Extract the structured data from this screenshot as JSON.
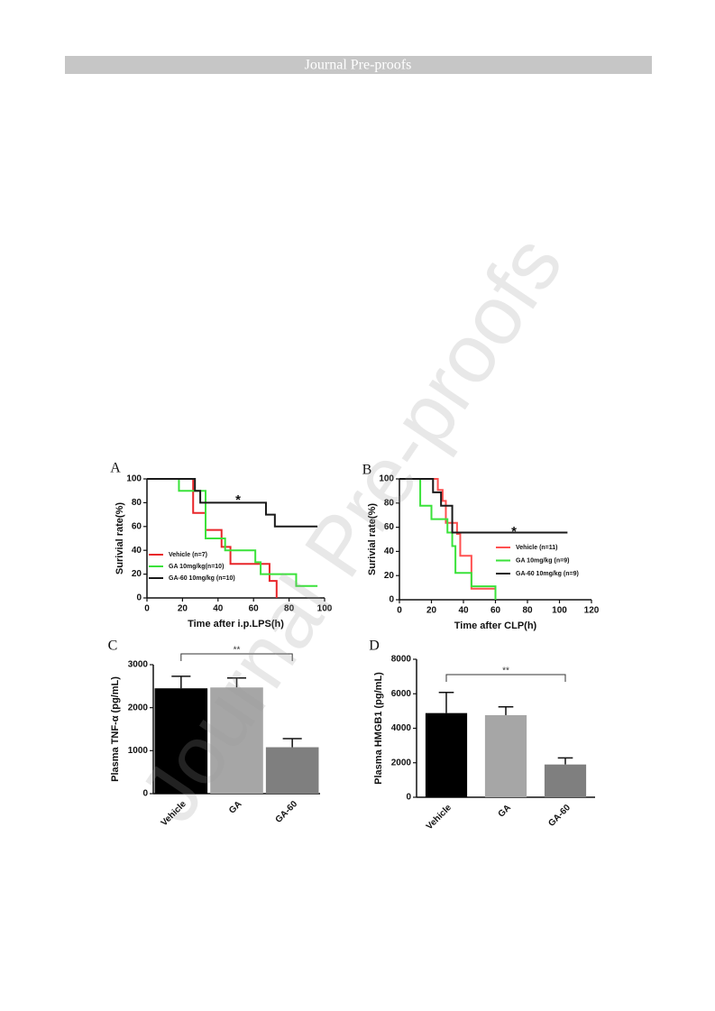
{
  "header": "Journal Pre-proofs",
  "watermark": "Journal Pre-proofs",
  "chart_data": [
    {
      "type": "step",
      "panel": "A",
      "xlabel": "Time after i.p.LPS(h)",
      "ylabel": "Surivial rate(%)",
      "xlim": [
        0,
        100
      ],
      "xticks": [
        0,
        20,
        40,
        60,
        80,
        100
      ],
      "ylim": [
        0,
        100
      ],
      "yticks": [
        0,
        20,
        40,
        60,
        80,
        100
      ],
      "annotation": "*",
      "legend": "lower left",
      "series": [
        {
          "name": "Vehicle (n=7)",
          "color": "#e8262a",
          "x": [
            0,
            26,
            33,
            42,
            47,
            69,
            73
          ],
          "values": [
            100,
            71.4,
            57.1,
            42.9,
            28.6,
            14.3,
            0
          ]
        },
        {
          "name": "GA 10mg/kg(n=10)",
          "color": "#3ae23a",
          "x": [
            0,
            18,
            33,
            44,
            61,
            64,
            84,
            96
          ],
          "values": [
            100,
            90,
            50,
            40,
            30,
            20,
            10,
            10
          ]
        },
        {
          "name": "GA-60 10mg/kg  (n=10)",
          "color": "#1a1a1a",
          "x": [
            0,
            27,
            30,
            67,
            72,
            96
          ],
          "values": [
            100,
            90,
            80,
            70,
            60,
            60
          ]
        }
      ]
    },
    {
      "type": "step",
      "panel": "B",
      "xlabel": "Time after CLP(h)",
      "ylabel": "Surivial rate(%)",
      "xlim": [
        0,
        120
      ],
      "xticks": [
        0,
        20,
        40,
        60,
        80,
        100,
        120
      ],
      "ylim": [
        0,
        100
      ],
      "yticks": [
        0,
        20,
        40,
        60,
        80,
        100
      ],
      "annotation": "*",
      "legend": "lower right",
      "series": [
        {
          "name": "Vehicle (n=11)",
          "color": "#ff5050",
          "x": [
            0,
            24,
            27,
            29,
            36,
            38,
            45,
            60
          ],
          "values": [
            100,
            90.9,
            81.8,
            63.6,
            54.5,
            36.4,
            9.1,
            0
          ]
        },
        {
          "name": "GA 10mg/kg (n=9)",
          "color": "#3ae23a",
          "x": [
            0,
            13,
            20,
            30,
            33,
            35,
            45,
            60
          ],
          "values": [
            100,
            77.8,
            66.7,
            55.6,
            44.4,
            22.2,
            11.1,
            0
          ]
        },
        {
          "name": "GA-60 10mg/kg (n=9)",
          "color": "#1a1a1a",
          "x": [
            0,
            21,
            26,
            33,
            105
          ],
          "values": [
            100,
            88.9,
            77.8,
            55.6,
            55.6
          ]
        }
      ]
    },
    {
      "type": "bar",
      "panel": "C",
      "ylabel": "Plasma TNF-α (pg/mL)",
      "categories": [
        "Vehicle",
        "GA",
        "GA-60"
      ],
      "values": [
        2450,
        2470,
        1080
      ],
      "errors": [
        280,
        220,
        200
      ],
      "colors": [
        "#000000",
        "#a6a6a6",
        "#7f7f7f"
      ],
      "ylim": [
        0,
        3000
      ],
      "yticks": [
        0,
        1000,
        2000,
        3000
      ],
      "annotation": "**"
    },
    {
      "type": "bar",
      "panel": "D",
      "ylabel": "Plasma HMGB1 (pg/mL)",
      "categories": [
        "Vehicle",
        "GA",
        "GA-60"
      ],
      "values": [
        4880,
        4760,
        1900
      ],
      "errors": [
        1200,
        480,
        380
      ],
      "colors": [
        "#000000",
        "#a6a6a6",
        "#7f7f7f"
      ],
      "ylim": [
        0,
        8000
      ],
      "yticks": [
        0,
        2000,
        4000,
        6000,
        8000
      ],
      "annotation": "**"
    }
  ]
}
